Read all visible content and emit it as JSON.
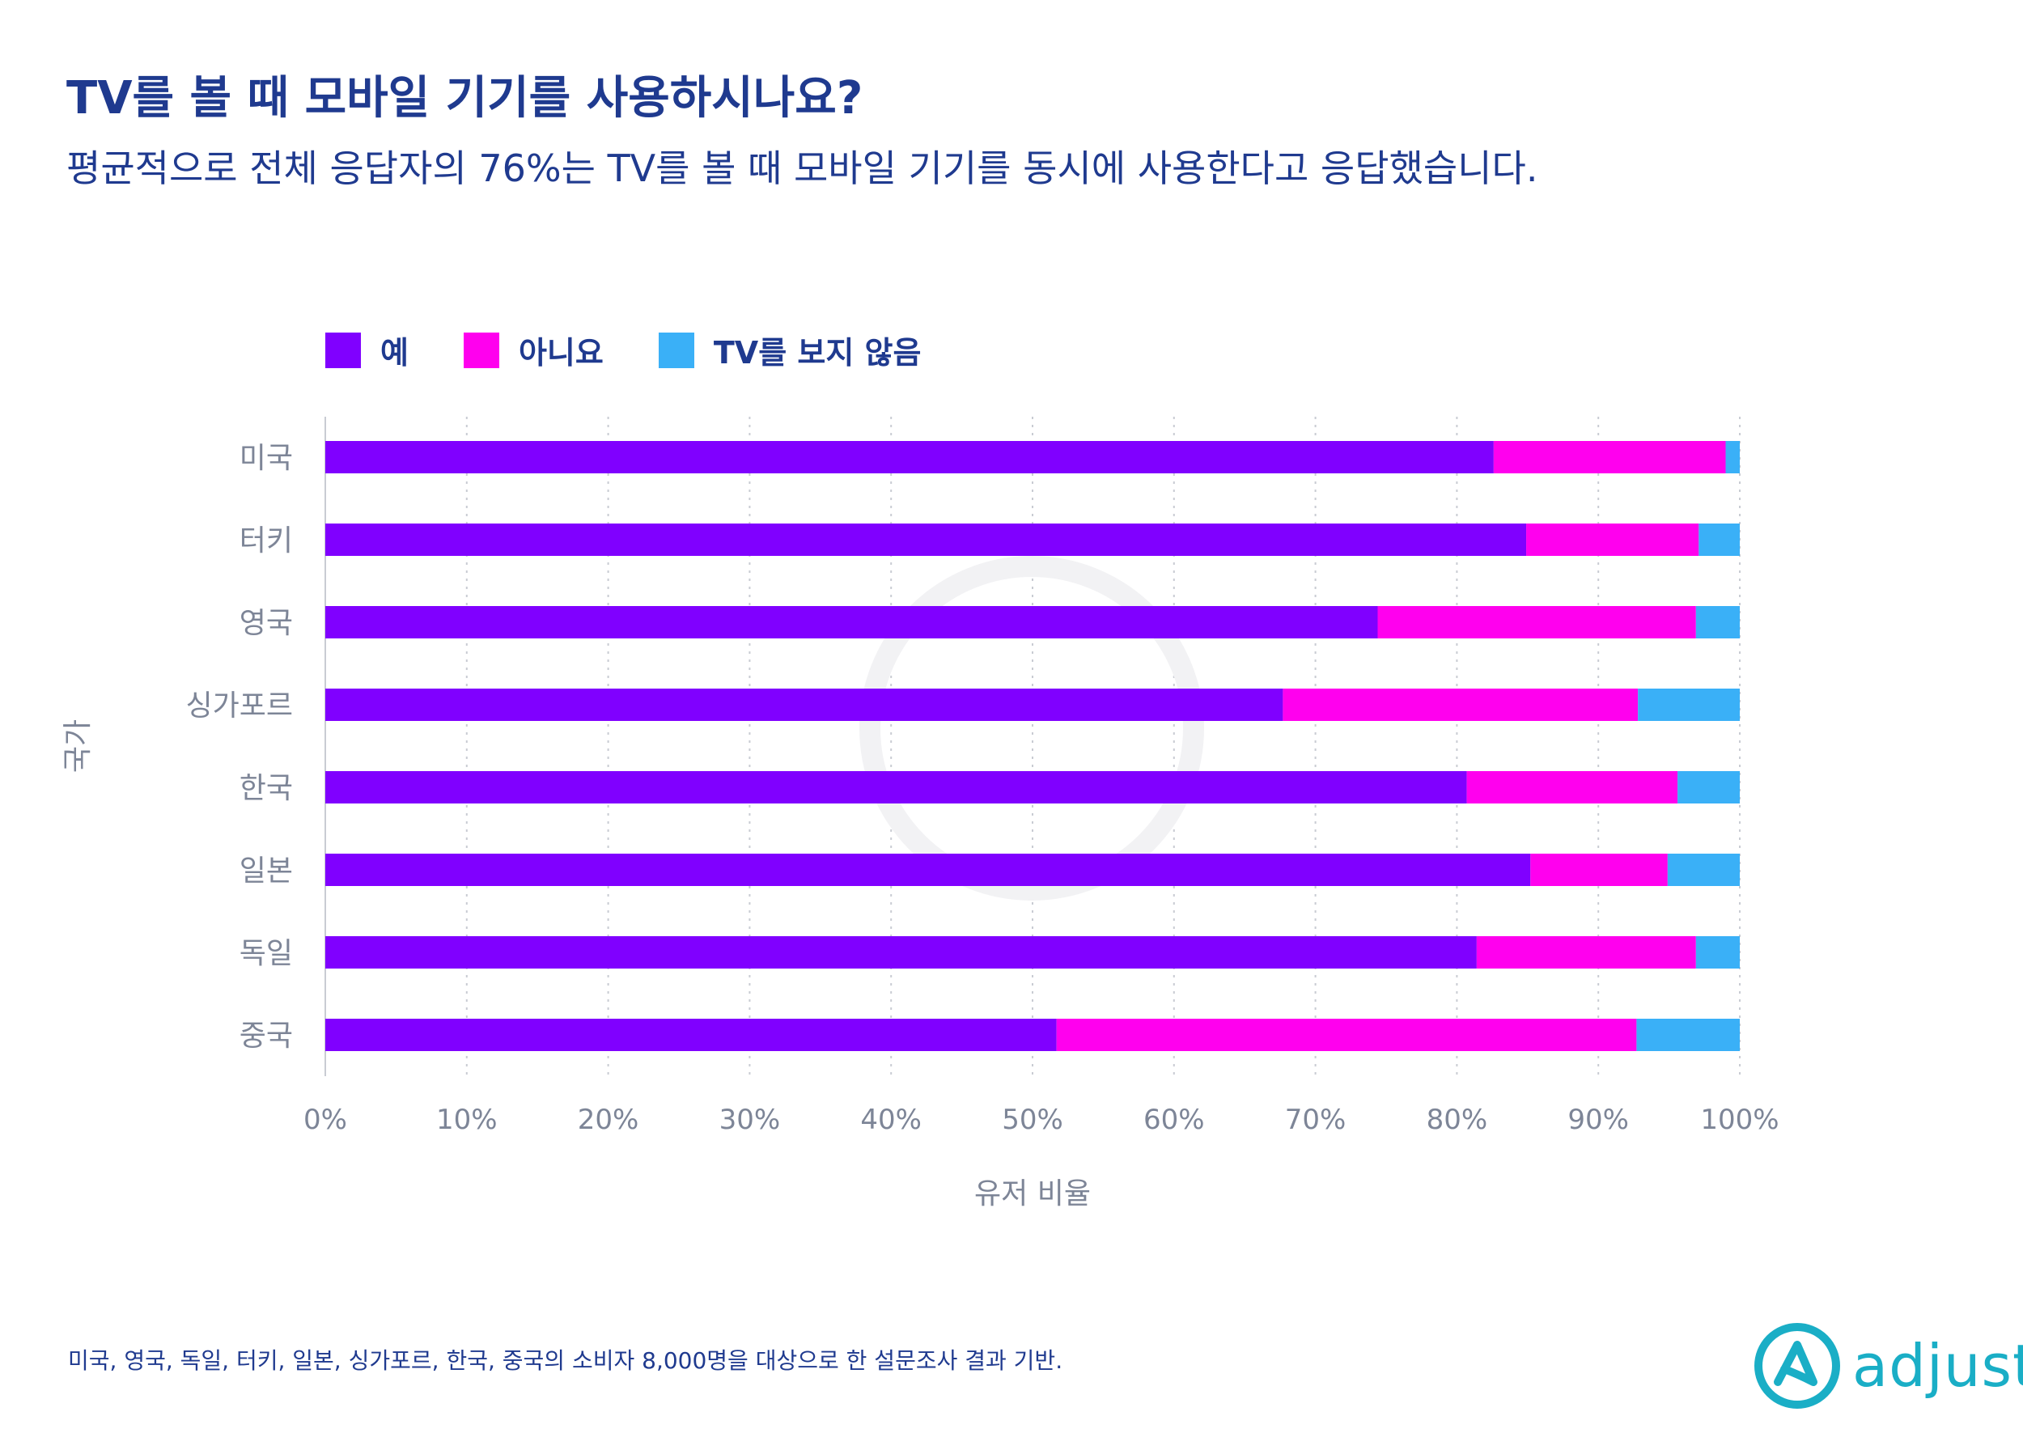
{
  "title": "TV를 볼 때 모바일 기기를 사용하시나요?",
  "subtitle": "평균적으로 전체 응답자의 76%는 TV를 볼 때 모바일 기기를 동시에 사용한다고 응답했습니다.",
  "footnote": "미국, 영국, 독일, 터키, 일본, 싱가포르, 한국, 중국의 소비자 8,000명을 대상으로 한 설문조사 결과 기반.",
  "logo": {
    "text": "adjust",
    "icon": "adjust-logo-icon",
    "color": "#1aaec6"
  },
  "colors": {
    "yes": "#8000ff",
    "no": "#ff00ee",
    "no_tv": "#3ab0f7",
    "text": "#1f3a8f",
    "axis_text": "#7d8597"
  },
  "chart_data": {
    "type": "bar",
    "orientation": "horizontal",
    "stacked": true,
    "title": "TV를 볼 때 모바일 기기를 사용하시나요?",
    "xlabel": "유저 비율",
    "ylabel": "국가",
    "xlim": [
      0,
      100
    ],
    "xticks": [
      "0%",
      "10%",
      "20%",
      "30%",
      "40%",
      "50%",
      "60%",
      "70%",
      "80%",
      "90%",
      "100%"
    ],
    "grid": true,
    "legend_position": "top-left",
    "categories": [
      "미국",
      "터키",
      "영국",
      "싱가포르",
      "한국",
      "일본",
      "독일",
      "중국"
    ],
    "series": [
      {
        "name": "예",
        "color": "#8000ff",
        "values": [
          82.6,
          84.9,
          74.4,
          67.7,
          80.7,
          85.2,
          81.4,
          51.7
        ]
      },
      {
        "name": "아니요",
        "color": "#ff00ee",
        "values": [
          16.4,
          12.2,
          22.5,
          25.1,
          14.9,
          9.7,
          15.5,
          41.0
        ]
      },
      {
        "name": "TV를 보지 않음",
        "color": "#3ab0f7",
        "values": [
          1.0,
          2.9,
          3.1,
          7.2,
          4.4,
          5.1,
          3.1,
          7.3
        ]
      }
    ]
  }
}
